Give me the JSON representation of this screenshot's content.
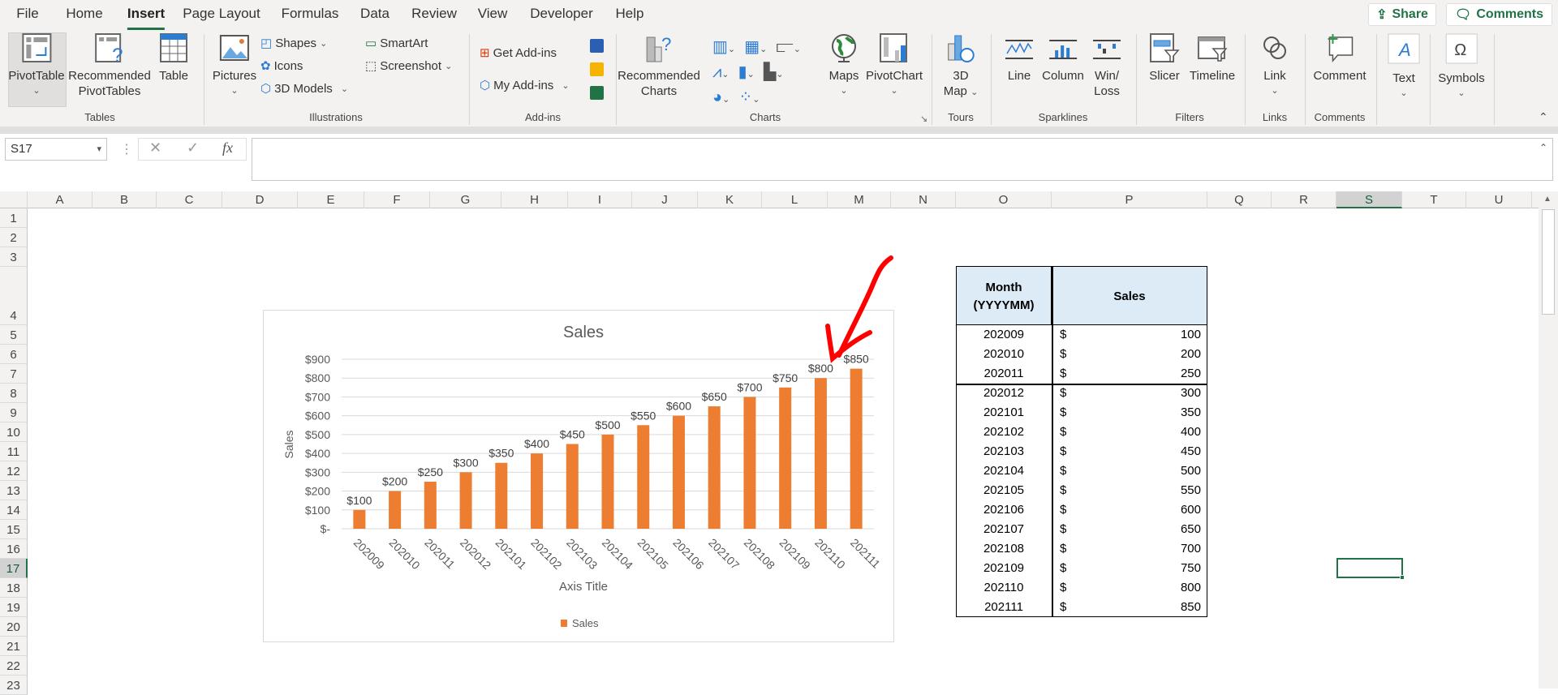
{
  "menu_tabs": [
    {
      "label": "File"
    },
    {
      "label": "Home"
    },
    {
      "label": "Insert",
      "active": true
    },
    {
      "label": "Page Layout"
    },
    {
      "label": "Formulas"
    },
    {
      "label": "Data"
    },
    {
      "label": "Review"
    },
    {
      "label": "View"
    },
    {
      "label": "Developer"
    },
    {
      "label": "Help"
    }
  ],
  "top_buttons": {
    "share": "Share",
    "comments": "Comments"
  },
  "ribbon": {
    "groups": [
      "Tables",
      "Illustrations",
      "Add-ins",
      "Charts",
      "Tours",
      "Sparklines",
      "Filters",
      "Links",
      "Comments"
    ],
    "pivot_table": "PivotTable",
    "recommended_pivot_1": "Recommended",
    "recommended_pivot_2": "PivotTables",
    "table": "Table",
    "pictures": "Pictures",
    "shapes": "Shapes",
    "icons": "Icons",
    "models_3d": "3D Models",
    "smartart": "SmartArt",
    "screenshot": "Screenshot",
    "get_addins": "Get Add-ins",
    "my_addins": "My Add-ins",
    "recommended_charts_1": "Recommended",
    "recommended_charts_2": "Charts",
    "maps": "Maps",
    "pivot_chart": "PivotChart",
    "map3d_1": "3D",
    "map3d_2": "Map",
    "line": "Line",
    "column": "Column",
    "winloss_1": "Win/",
    "winloss_2": "Loss",
    "slicer": "Slicer",
    "timeline": "Timeline",
    "link": "Link",
    "comment": "Comment",
    "text": "Text",
    "symbols": "Symbols"
  },
  "formula_bar": {
    "name_box": "S17",
    "fx": "fx",
    "value": ""
  },
  "columns": [
    "A",
    "B",
    "C",
    "D",
    "E",
    "F",
    "G",
    "H",
    "I",
    "J",
    "K",
    "L",
    "M",
    "N",
    "O",
    "P",
    "Q",
    "R",
    "S",
    "T",
    "U"
  ],
  "selected_column": "S",
  "rows": [
    "1",
    "2",
    "3",
    "4",
    "5",
    "6",
    "7",
    "8",
    "9",
    "10",
    "11",
    "12",
    "13",
    "14",
    "15",
    "16",
    "17",
    "18",
    "19",
    "20",
    "21",
    "22",
    "23"
  ],
  "selected_row": "17",
  "table": {
    "header_month_1": "Month",
    "header_month_2": "(YYYYMM)",
    "header_sales": "Sales",
    "header_fill": "#DDEBF7",
    "currency": "$",
    "rows": [
      [
        "202009",
        "100"
      ],
      [
        "202010",
        "200"
      ],
      [
        "202011",
        "250"
      ],
      [
        "202012",
        "300"
      ],
      [
        "202101",
        "350"
      ],
      [
        "202102",
        "400"
      ],
      [
        "202103",
        "450"
      ],
      [
        "202104",
        "500"
      ],
      [
        "202105",
        "550"
      ],
      [
        "202106",
        "600"
      ],
      [
        "202107",
        "650"
      ],
      [
        "202108",
        "700"
      ],
      [
        "202109",
        "750"
      ],
      [
        "202110",
        "800"
      ],
      [
        "202111",
        "850"
      ]
    ]
  },
  "annotation": {
    "type": "red-arrow",
    "color": "#ff0000",
    "points_to": "202110"
  },
  "chart_data": {
    "type": "bar",
    "title": "Sales",
    "xlabel": "Axis Title",
    "ylabel": "Sales",
    "categories": [
      "202009",
      "202010",
      "202011",
      "202012",
      "202101",
      "202102",
      "202103",
      "202104",
      "202105",
      "202106",
      "202107",
      "202108",
      "202109",
      "202110",
      "202111"
    ],
    "series": [
      {
        "name": "Sales",
        "values": [
          100,
          200,
          250,
          300,
          350,
          400,
          450,
          500,
          550,
          600,
          650,
          700,
          750,
          800,
          850
        ],
        "color": "#ED7D31"
      }
    ],
    "data_labels": [
      "$100",
      "$200",
      "$250",
      "$300",
      "$350",
      "$400",
      "$450",
      "$500",
      "$550",
      "$600",
      "$650",
      "$700",
      "$750",
      "$800",
      "$850"
    ],
    "yticks": [
      "$-",
      "$100",
      "$200",
      "$300",
      "$400",
      "$500",
      "$600",
      "$700",
      "$800",
      "$900"
    ],
    "ylim": [
      0,
      900
    ],
    "grid": true,
    "legend": "bottom"
  }
}
